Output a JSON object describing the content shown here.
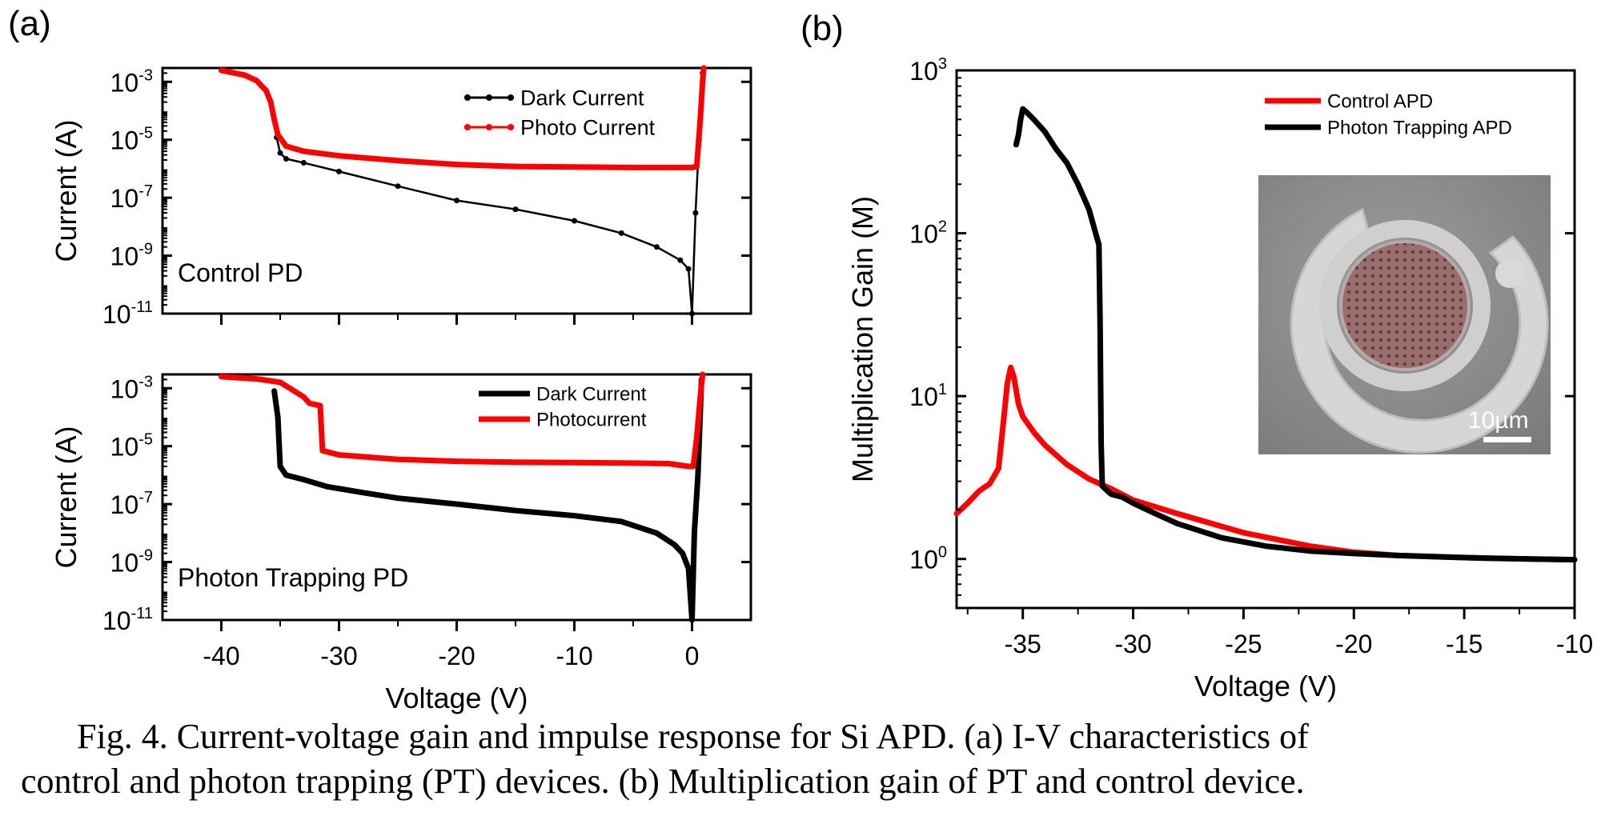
{
  "panel_labels": [
    "(a)",
    "(b)"
  ],
  "caption": {
    "line1": "Fig. 4. Current-voltage gain and impulse response for Si APD. (a) I-V characteristics of",
    "line2": "control and photon trapping (PT) devices. (b) Multiplication gain of PT and control device."
  },
  "inset_scale_label": "10µm",
  "colors": {
    "red": "#ff0000",
    "black": "#000000",
    "inset_bg": "#8d8d8d",
    "inset_dot": "#9a6e6e"
  },
  "chart_data": [
    {
      "type": "line",
      "panel": "(a) top",
      "annotation": "Control PD",
      "xlabel": "",
      "ylabel": "Current (A)",
      "yscale": "log",
      "xlim": [
        -45,
        5
      ],
      "ylim": [
        1e-11,
        0.003
      ],
      "xticks": [
        -40,
        -30,
        -20,
        -10,
        0
      ],
      "yticks": [
        {
          "value": 0.001,
          "base": "10",
          "exp": "-3"
        },
        {
          "value": 1e-05,
          "base": "10",
          "exp": "-5"
        },
        {
          "value": 1e-07,
          "base": "10",
          "exp": "-7"
        },
        {
          "value": 1e-09,
          "base": "10",
          "exp": "-9"
        },
        {
          "value": 1e-11,
          "base": "10",
          "exp": "-11"
        }
      ],
      "legend_position": "top-right",
      "series": [
        {
          "name": "Dark Current",
          "color": "#000000",
          "markers": true,
          "x": [
            -35.3,
            -35,
            -34.5,
            -33,
            -30,
            -25,
            -20,
            -15,
            -10,
            -6,
            -3,
            -1,
            -0.3,
            0,
            0.3,
            0.6,
            0.9
          ],
          "y": [
            1.2e-05,
            3.5e-06,
            2.2e-06,
            1.6e-06,
            8e-07,
            2.5e-07,
            8e-08,
            4e-08,
            1.6e-08,
            6e-09,
            2e-09,
            7e-10,
            3.5e-10,
            1e-11,
            3e-08,
            1e-05,
            0.002
          ]
        },
        {
          "name": "Photo Current",
          "color": "#ff0000",
          "markers": true,
          "x": [
            -40,
            -38,
            -37,
            -36.2,
            -35.8,
            -35.5,
            -35.2,
            -34.5,
            -33,
            -30,
            -25,
            -20,
            -15,
            -10,
            -5,
            -2,
            0,
            0.4,
            0.7,
            0.9,
            1.0
          ],
          "y": [
            0.0025,
            0.0017,
            0.0011,
            0.0005,
            0.0002,
            5e-05,
            1.5e-05,
            6e-06,
            4e-06,
            2.8e-06,
            1.9e-06,
            1.4e-06,
            1.2e-06,
            1.15e-06,
            1.1e-06,
            1.1e-06,
            1.1e-06,
            1.2e-06,
            5e-05,
            0.001,
            0.003
          ]
        }
      ]
    },
    {
      "type": "line",
      "panel": "(a) bottom",
      "annotation": "Photon Trapping PD",
      "xlabel": "Voltage (V)",
      "ylabel": "Current (A)",
      "yscale": "log",
      "xlim": [
        -45,
        5
      ],
      "ylim": [
        1e-11,
        0.003
      ],
      "xticks": [
        -40,
        -30,
        -20,
        -10,
        0
      ],
      "yticks": [
        {
          "value": 0.001,
          "base": "10",
          "exp": "-3"
        },
        {
          "value": 1e-05,
          "base": "10",
          "exp": "-5"
        },
        {
          "value": 1e-07,
          "base": "10",
          "exp": "-7"
        },
        {
          "value": 1e-09,
          "base": "10",
          "exp": "-9"
        },
        {
          "value": 1e-11,
          "base": "10",
          "exp": "-11"
        }
      ],
      "legend_position": "top-right",
      "series": [
        {
          "name": "Dark Current",
          "color": "#000000",
          "markers": false,
          "x": [
            -35.5,
            -35.2,
            -35,
            -34.5,
            -33,
            -31,
            -28,
            -25,
            -20,
            -15,
            -10,
            -6,
            -3,
            -1.5,
            -0.8,
            -0.3,
            0,
            0.2,
            0.5,
            0.8
          ],
          "y": [
            0.0008,
            0.0001,
            2e-06,
            1e-06,
            7e-07,
            4e-07,
            2.5e-07,
            1.6e-07,
            1e-07,
            6e-08,
            4e-08,
            2.5e-08,
            1e-08,
            4e-09,
            2e-09,
            6e-10,
            1e-11,
            1e-08,
            1e-06,
            0.002
          ]
        },
        {
          "name": "Photocurrent",
          "color": "#ff0000",
          "markers": false,
          "x": [
            -40,
            -37,
            -35,
            -34,
            -33,
            -32.5,
            -31.6,
            -31.4,
            -30,
            -25,
            -20,
            -15,
            -10,
            -5,
            -2,
            -0.3,
            0.1,
            0.4,
            0.7,
            0.9
          ],
          "y": [
            0.0025,
            0.0021,
            0.0016,
            0.0009,
            0.0005,
            0.0003,
            0.00025,
            7e-06,
            5e-06,
            3.5e-06,
            3e-06,
            2.8e-06,
            2.7e-06,
            2.6e-06,
            2.5e-06,
            2e-06,
            2e-06,
            2e-05,
            0.0005,
            0.003
          ]
        }
      ]
    },
    {
      "type": "line",
      "panel": "(b)",
      "xlabel": "Voltage (V)",
      "ylabel": "Multiplication Gain (M)",
      "yscale": "log",
      "xlim": [
        -38,
        -10
      ],
      "ylim": [
        0.5,
        1000
      ],
      "xticks": [
        -35,
        -30,
        -25,
        -20,
        -15,
        -10
      ],
      "yticks": [
        {
          "value": 1,
          "base": "10",
          "exp": "0"
        },
        {
          "value": 10,
          "base": "10",
          "exp": "1"
        },
        {
          "value": 100,
          "base": "10",
          "exp": "2"
        },
        {
          "value": 1000,
          "base": "10",
          "exp": "3"
        }
      ],
      "legend_position": "top-right",
      "series": [
        {
          "name": "Control APD",
          "color": "#ff0000",
          "markers": false,
          "x": [
            -38,
            -37.5,
            -37,
            -36.5,
            -36.1,
            -35.9,
            -35.7,
            -35.55,
            -35.4,
            -35.2,
            -35,
            -34.5,
            -34,
            -33,
            -32,
            -31,
            -30,
            -28,
            -25,
            -22,
            -20,
            -18,
            -15,
            -12,
            -10
          ],
          "y": [
            1.9,
            2.2,
            2.6,
            2.9,
            3.6,
            6.5,
            12,
            15,
            13,
            9,
            7.5,
            6,
            5,
            3.8,
            3.1,
            2.7,
            2.3,
            1.9,
            1.45,
            1.2,
            1.1,
            1.05,
            1.02,
            1.0,
            0.99
          ]
        },
        {
          "name": "Photon Trapping APD",
          "color": "#000000",
          "markers": false,
          "x": [
            -35.3,
            -35.2,
            -35.1,
            -35,
            -34.8,
            -34.5,
            -34,
            -33.5,
            -33,
            -32.5,
            -32,
            -31.7,
            -31.55,
            -31.5,
            -31.45,
            -31.4,
            -31,
            -30.5,
            -30,
            -29,
            -28,
            -26,
            -24,
            -22,
            -20,
            -18,
            -16,
            -14,
            -12,
            -10
          ],
          "y": [
            350,
            400,
            500,
            580,
            550,
            500,
            420,
            330,
            270,
            200,
            140,
            100,
            85,
            30,
            5,
            2.8,
            2.5,
            2.4,
            2.2,
            1.9,
            1.65,
            1.35,
            1.2,
            1.12,
            1.08,
            1.05,
            1.03,
            1.01,
            1.0,
            0.99
          ]
        }
      ]
    }
  ]
}
